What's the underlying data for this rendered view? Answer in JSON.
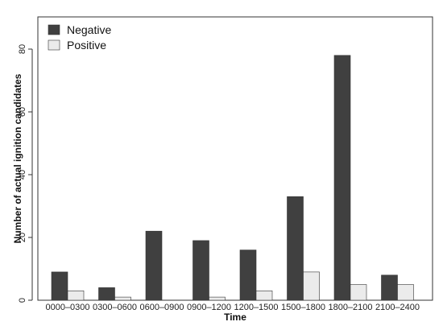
{
  "chart_data": {
    "type": "bar",
    "title": "",
    "xlabel": "Time",
    "ylabel": "Number of actual ignition candidates",
    "categories": [
      "0000–0300",
      "0300–0600",
      "0600–0900",
      "0900–1200",
      "1200–1500",
      "1500–1800",
      "1800–2100",
      "2100–2400"
    ],
    "series": [
      {
        "name": "Negative",
        "color": "#404040",
        "values": [
          9,
          4,
          22,
          19,
          16,
          33,
          78,
          8
        ]
      },
      {
        "name": "Positive",
        "color": "#ebebeb",
        "values": [
          3,
          1,
          0,
          1,
          3,
          9,
          5,
          5
        ]
      }
    ],
    "ylim": [
      0,
      82
    ],
    "yticks": [
      0,
      20,
      40,
      60,
      80
    ],
    "grid": false,
    "legend_position": "top-left"
  }
}
